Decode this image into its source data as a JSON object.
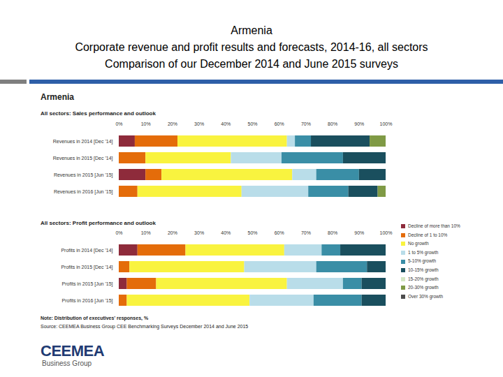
{
  "slide": {
    "title_lines": [
      "Armenia",
      "Corporate revenue and profit results and forecasts, 2014-16, all sectors",
      "Comparison of our December 2014 and June 2015 surveys"
    ]
  },
  "panel": {
    "heading": "Armenia",
    "note": "Note: Distribution of executives' responses, %",
    "source": "Source: CEEMEA Business Group CEE Benchmarking Surveys December 2014 and June 2015"
  },
  "logo": {
    "name": "CEEMEA",
    "tagline": "Business Group"
  },
  "chart_data": [
    {
      "type": "bar",
      "orientation": "horizontal",
      "stacked": true,
      "title": "All sectors: Sales performance and outlook",
      "categories": [
        "Revenues in 2014 [Dec '14]",
        "Revenues in 2015 [Dec '14]",
        "Revenues in 2015 [Jun '15]",
        "Revenues in 2016 [Jun '15]"
      ],
      "xlim": [
        0,
        100
      ],
      "xticks": [
        {
          "value": 0,
          "label": "0%"
        },
        {
          "value": 10,
          "label": "10%"
        },
        {
          "value": 20,
          "label": "20%"
        },
        {
          "value": 30,
          "label": "30%"
        },
        {
          "value": 40,
          "label": "40%"
        },
        {
          "value": 50,
          "label": "50%"
        },
        {
          "value": 60,
          "label": "60%"
        },
        {
          "value": 70,
          "label": "70%"
        },
        {
          "value": 80,
          "label": "80%"
        },
        {
          "value": 90,
          "label": "90%"
        },
        {
          "value": 100,
          "label": "100%"
        }
      ],
      "series": [
        {
          "name": "Decline of more than 10%",
          "color": "#8e2b3b",
          "values": [
            6,
            0,
            10,
            0
          ]
        },
        {
          "name": "Decline of 1 to 10%",
          "color": "#e46c0a",
          "values": [
            16,
            10,
            6,
            7
          ]
        },
        {
          "name": "No growth",
          "color": "#f9f33f",
          "values": [
            41,
            32,
            49,
            39
          ]
        },
        {
          "name": "1 to 5% growth",
          "color": "#b9dde9",
          "values": [
            3,
            19,
            9,
            25
          ]
        },
        {
          "name": "5-10% growth",
          "color": "#3a8ea6",
          "values": [
            6,
            23,
            16,
            15
          ]
        },
        {
          "name": "10-15% growth",
          "color": "#1a4f5e",
          "values": [
            22,
            16,
            10,
            11
          ]
        },
        {
          "name": "15-20% growth",
          "color": "#d4e7c3",
          "values": [
            0,
            0,
            0,
            0
          ]
        },
        {
          "name": "20-30% growth",
          "color": "#7f9a45",
          "values": [
            6,
            0,
            0,
            3
          ]
        },
        {
          "name": "Over 30% growth",
          "color": "#4d4d4d",
          "values": [
            0,
            0,
            0,
            0
          ]
        }
      ]
    },
    {
      "type": "bar",
      "orientation": "horizontal",
      "stacked": true,
      "legend": "right",
      "title": "All sectors: Profit performance and outlook",
      "categories": [
        "Profits in 2014 [Dec '14]",
        "Profits in 2015 [Dec '14]",
        "Profits in 2015 [Jun '15]",
        "Profits in 2016 [Jun '15]"
      ],
      "xlim": [
        0,
        100
      ],
      "xticks": [
        {
          "value": 0,
          "label": "0%"
        },
        {
          "value": 10,
          "label": "10%"
        },
        {
          "value": 20,
          "label": "20%"
        },
        {
          "value": 30,
          "label": "30%"
        },
        {
          "value": 40,
          "label": "40%"
        },
        {
          "value": 50,
          "label": "50%"
        },
        {
          "value": 60,
          "label": "60%"
        },
        {
          "value": 70,
          "label": "70%"
        },
        {
          "value": 80,
          "label": "80%"
        },
        {
          "value": 90,
          "label": "90%"
        },
        {
          "value": 100,
          "label": "100%"
        }
      ],
      "series": [
        {
          "name": "Decline of more than 10%",
          "color": "#8e2b3b",
          "values": [
            7,
            0,
            3,
            0
          ]
        },
        {
          "name": "Decline of 1 to 10%",
          "color": "#e46c0a",
          "values": [
            18,
            4,
            11,
            3
          ]
        },
        {
          "name": "No growth",
          "color": "#f9f33f",
          "values": [
            37,
            43,
            49,
            46
          ]
        },
        {
          "name": "1 to 5% growth",
          "color": "#b9dde9",
          "values": [
            14,
            27,
            21,
            24
          ]
        },
        {
          "name": "5-10% growth",
          "color": "#3a8ea6",
          "values": [
            7,
            19,
            7,
            18
          ]
        },
        {
          "name": "10-15% growth",
          "color": "#1a4f5e",
          "values": [
            17,
            7,
            9,
            9
          ]
        },
        {
          "name": "15-20% growth",
          "color": "#d4e7c3",
          "values": [
            0,
            0,
            0,
            0
          ]
        },
        {
          "name": "20-30% growth",
          "color": "#7f9a45",
          "values": [
            0,
            0,
            0,
            0
          ]
        },
        {
          "name": "Over 30% growth",
          "color": "#4d4d4d",
          "values": [
            0,
            0,
            0,
            0
          ]
        }
      ]
    }
  ]
}
